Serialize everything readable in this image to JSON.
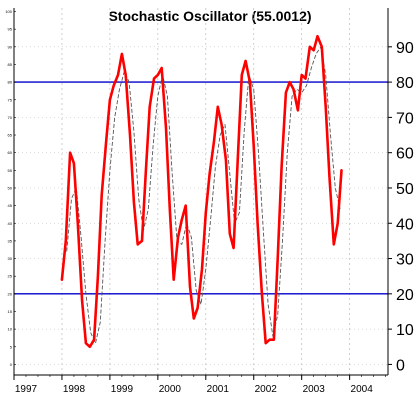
{
  "chart_data": {
    "type": "line",
    "title": "Stochastic Oscillator (55.0012)",
    "xlabel": "",
    "ylabel": "",
    "ylim": [
      -3,
      101
    ],
    "xlim": [
      1997,
      2004.8
    ],
    "x_ticks": [
      "1997",
      "1998",
      "1999",
      "2000",
      "2001",
      "2002",
      "2003",
      "2004"
    ],
    "y_ticks": [
      0,
      10,
      20,
      30,
      40,
      50,
      60,
      70,
      80,
      90
    ],
    "y_ticks_left": [
      0,
      5,
      10,
      15,
      20,
      25,
      30,
      35,
      40,
      45,
      50,
      55,
      60,
      65,
      70,
      75,
      80,
      85,
      90,
      95,
      100
    ],
    "reference_lines": [
      20,
      80
    ],
    "grid": true,
    "colors": {
      "main_line": "#ff0000",
      "signal_line": "#555555",
      "reference_line": "#0000cc",
      "grid": "#bbbbbb"
    },
    "series": [
      {
        "style": "solid-thick",
        "points": [
          [
            1998.0,
            24
          ],
          [
            1998.08,
            35
          ],
          [
            1998.17,
            60
          ],
          [
            1998.25,
            57
          ],
          [
            1998.33,
            40
          ],
          [
            1998.42,
            18
          ],
          [
            1998.5,
            6
          ],
          [
            1998.58,
            5
          ],
          [
            1998.67,
            7
          ],
          [
            1998.75,
            25
          ],
          [
            1998.83,
            48
          ],
          [
            1998.92,
            63
          ],
          [
            1999.0,
            75
          ],
          [
            1999.08,
            79
          ],
          [
            1999.17,
            82
          ],
          [
            1999.25,
            88
          ],
          [
            1999.33,
            82
          ],
          [
            1999.42,
            65
          ],
          [
            1999.5,
            46
          ],
          [
            1999.58,
            34
          ],
          [
            1999.67,
            35
          ],
          [
            1999.75,
            55
          ],
          [
            1999.83,
            73
          ],
          [
            1999.92,
            81
          ],
          [
            2000.0,
            82
          ],
          [
            2000.08,
            84
          ],
          [
            2000.17,
            67
          ],
          [
            2000.25,
            44
          ],
          [
            2000.33,
            24
          ],
          [
            2000.42,
            36
          ],
          [
            2000.5,
            41
          ],
          [
            2000.58,
            45
          ],
          [
            2000.67,
            22
          ],
          [
            2000.75,
            13
          ],
          [
            2000.83,
            16
          ],
          [
            2000.92,
            27
          ],
          [
            2001.0,
            43
          ],
          [
            2001.08,
            54
          ],
          [
            2001.17,
            63
          ],
          [
            2001.25,
            73
          ],
          [
            2001.33,
            68
          ],
          [
            2001.42,
            58
          ],
          [
            2001.5,
            37
          ],
          [
            2001.58,
            33
          ],
          [
            2001.67,
            59
          ],
          [
            2001.75,
            82
          ],
          [
            2001.83,
            86
          ],
          [
            2001.92,
            80
          ],
          [
            2002.0,
            62
          ],
          [
            2002.08,
            40
          ],
          [
            2002.17,
            20
          ],
          [
            2002.25,
            6
          ],
          [
            2002.33,
            7
          ],
          [
            2002.42,
            7
          ],
          [
            2002.5,
            30
          ],
          [
            2002.58,
            56
          ],
          [
            2002.67,
            77
          ],
          [
            2002.75,
            80
          ],
          [
            2002.83,
            78
          ],
          [
            2002.92,
            72
          ],
          [
            2003.0,
            82
          ],
          [
            2003.08,
            81
          ],
          [
            2003.17,
            90
          ],
          [
            2003.25,
            89
          ],
          [
            2003.33,
            93
          ],
          [
            2003.42,
            90
          ],
          [
            2003.5,
            73
          ],
          [
            2003.58,
            53
          ],
          [
            2003.67,
            34
          ],
          [
            2003.75,
            40
          ],
          [
            2003.83,
            55
          ]
        ]
      },
      {
        "style": "dashed-thin",
        "points": [
          [
            1998.1,
            32
          ],
          [
            1998.2,
            47
          ],
          [
            1998.3,
            50
          ],
          [
            1998.4,
            36
          ],
          [
            1998.5,
            20
          ],
          [
            1998.6,
            9
          ],
          [
            1998.7,
            6
          ],
          [
            1998.8,
            12
          ],
          [
            1998.9,
            35
          ],
          [
            1999.0,
            55
          ],
          [
            1999.1,
            70
          ],
          [
            1999.2,
            78
          ],
          [
            1999.3,
            83
          ],
          [
            1999.4,
            80
          ],
          [
            1999.5,
            66
          ],
          [
            1999.6,
            47
          ],
          [
            1999.7,
            38
          ],
          [
            1999.8,
            44
          ],
          [
            1999.9,
            62
          ],
          [
            2000.0,
            76
          ],
          [
            2000.1,
            82
          ],
          [
            2000.2,
            76
          ],
          [
            2000.3,
            54
          ],
          [
            2000.4,
            35
          ],
          [
            2000.5,
            34
          ],
          [
            2000.6,
            40
          ],
          [
            2000.7,
            36
          ],
          [
            2000.8,
            21
          ],
          [
            2000.9,
            17
          ],
          [
            2001.0,
            27
          ],
          [
            2001.1,
            41
          ],
          [
            2001.2,
            56
          ],
          [
            2001.3,
            65
          ],
          [
            2001.4,
            68
          ],
          [
            2001.5,
            54
          ],
          [
            2001.6,
            40
          ],
          [
            2001.7,
            43
          ],
          [
            2001.8,
            66
          ],
          [
            2001.9,
            82
          ],
          [
            2002.0,
            78
          ],
          [
            2002.1,
            60
          ],
          [
            2002.2,
            38
          ],
          [
            2002.3,
            17
          ],
          [
            2002.4,
            8
          ],
          [
            2002.5,
            14
          ],
          [
            2002.6,
            35
          ],
          [
            2002.7,
            60
          ],
          [
            2002.8,
            76
          ],
          [
            2002.9,
            78
          ],
          [
            2003.0,
            77
          ],
          [
            2003.1,
            79
          ],
          [
            2003.2,
            84
          ],
          [
            2003.3,
            88
          ],
          [
            2003.4,
            90
          ],
          [
            2003.5,
            82
          ],
          [
            2003.6,
            65
          ],
          [
            2003.7,
            50
          ],
          [
            2003.8,
            44
          ]
        ]
      }
    ]
  }
}
